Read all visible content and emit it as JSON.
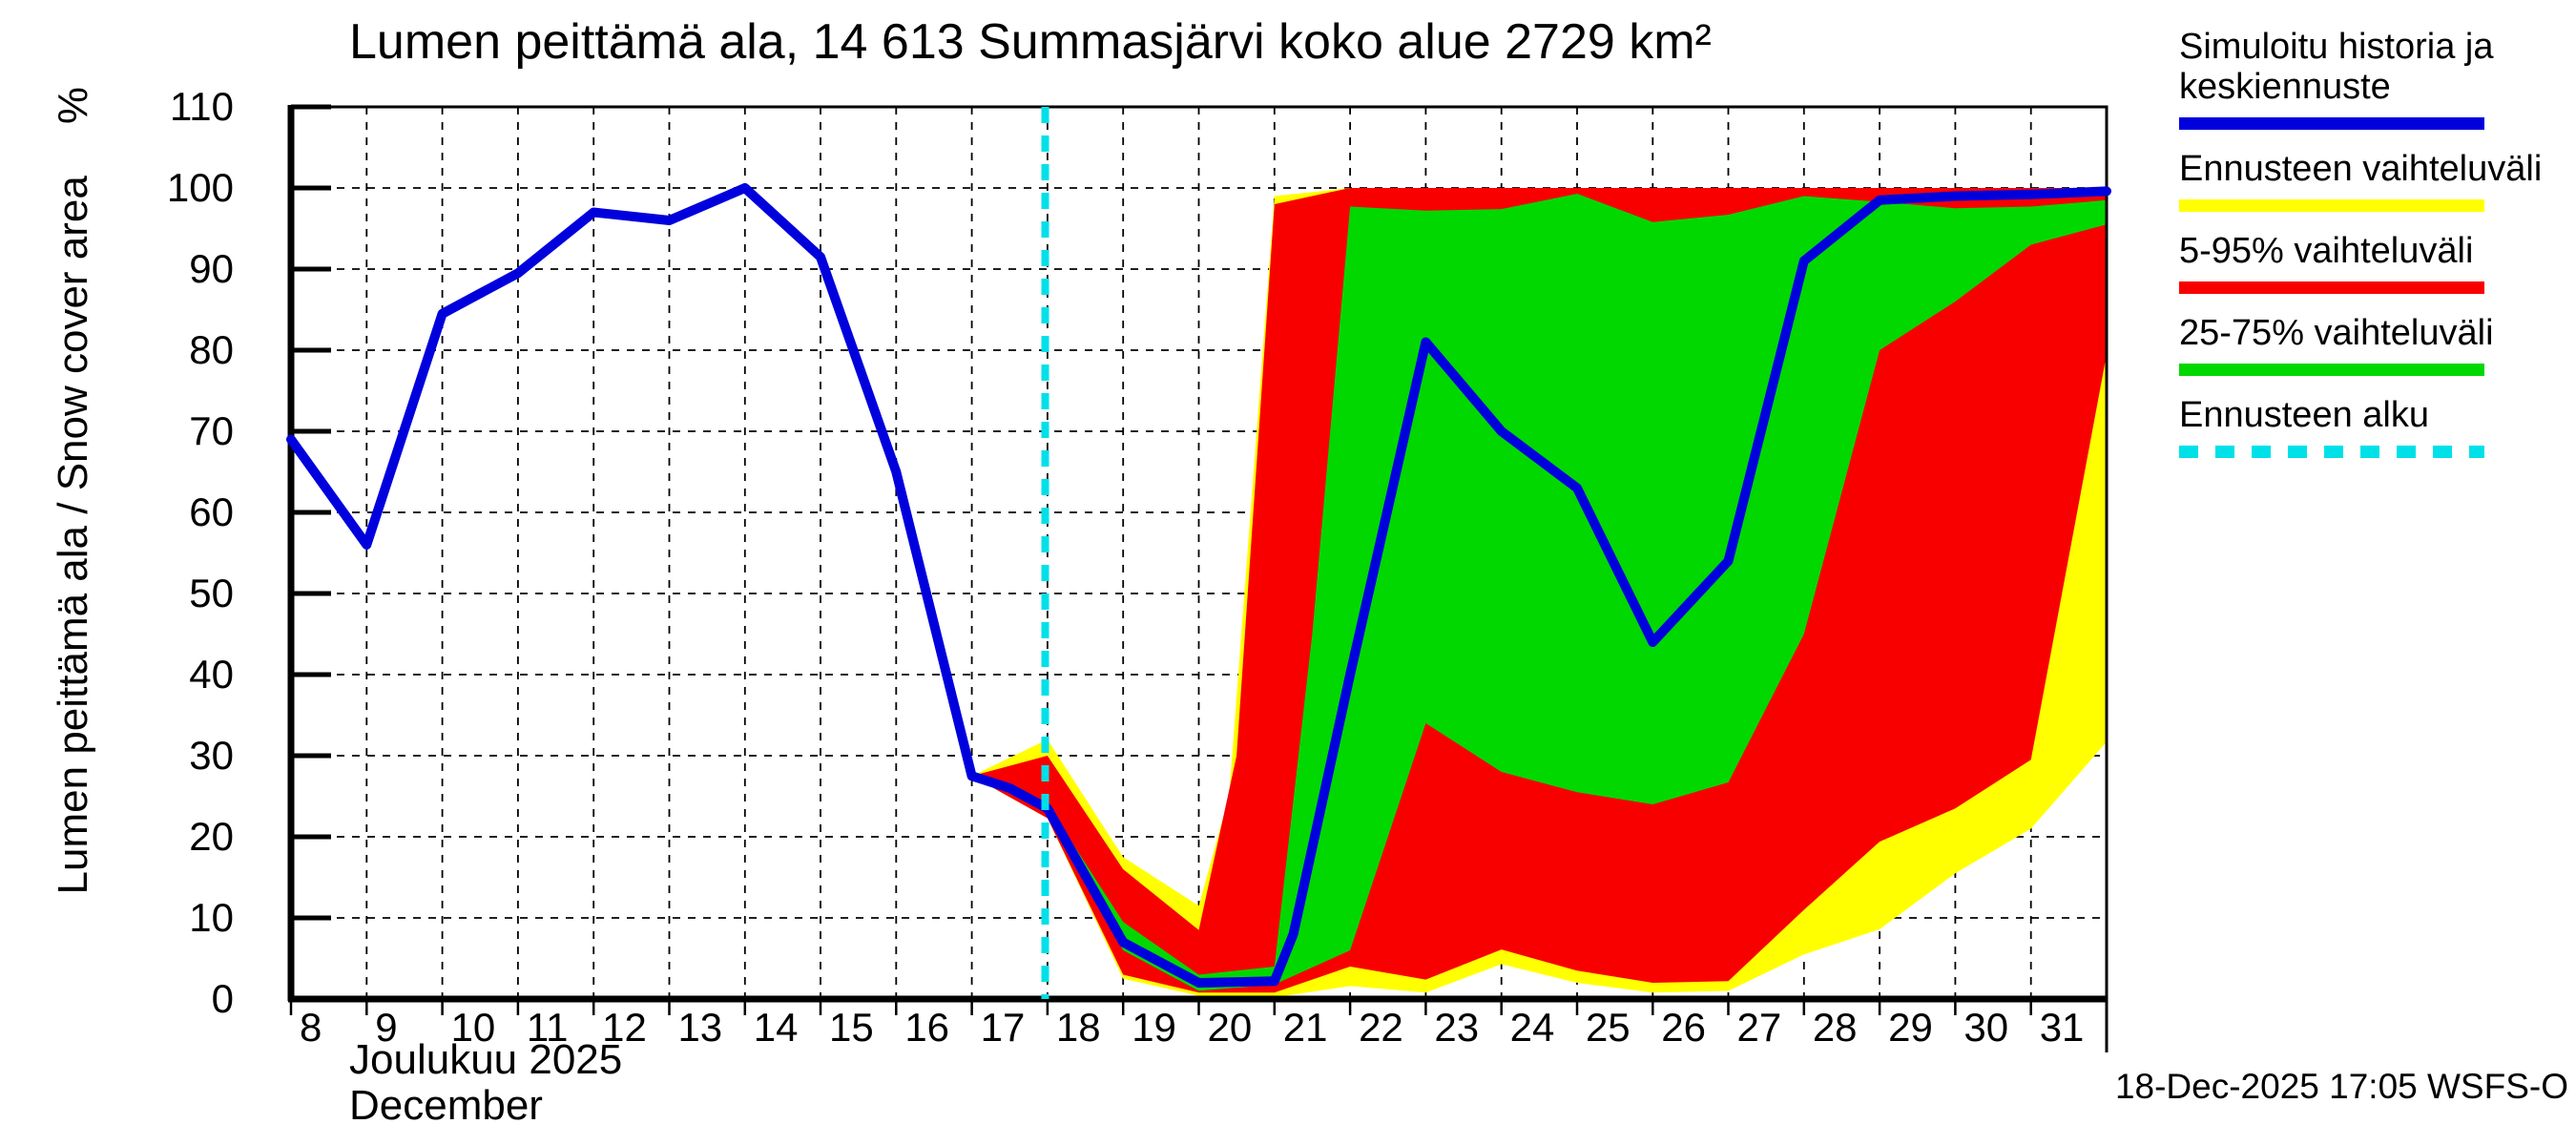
{
  "title": "Lumen peittämä ala, 14 613 Summasjärvi koko alue 2729 km²",
  "y_axis": {
    "label": "Lumen peittämä ala / Snow cover area",
    "unit": "%",
    "ticks": [
      0,
      10,
      20,
      30,
      40,
      50,
      60,
      70,
      80,
      90,
      100,
      110
    ]
  },
  "x_axis": {
    "label_fi": "Joulukuu 2025",
    "label_en": "December",
    "ticks": [
      8,
      9,
      10,
      11,
      12,
      13,
      14,
      15,
      16,
      17,
      18,
      19,
      20,
      21,
      22,
      23,
      24,
      25,
      26,
      27,
      28,
      29,
      30,
      31
    ]
  },
  "footer": {
    "datestamp": "18-Dec-2025 17:05 WSFS-O"
  },
  "colors": {
    "blue": "#0000dd",
    "yellow": "#ffff00",
    "red": "#f80000",
    "green": "#00d800",
    "cyan": "#00e0e8",
    "grid": "#000000",
    "frame": "#000000"
  },
  "legend": [
    {
      "label": "Simuloitu historia ja keskiennuste",
      "color_key": "blue",
      "dashed": false
    },
    {
      "label": "Ennusteen vaihteluväli",
      "color_key": "yellow",
      "dashed": false
    },
    {
      "label": "5-95% vaihteluväli",
      "color_key": "red",
      "dashed": false
    },
    {
      "label": "25-75% vaihteluväli",
      "color_key": "green",
      "dashed": false
    },
    {
      "label": "Ennusteen alku",
      "color_key": "cyan",
      "dashed": true
    }
  ],
  "chart_data": {
    "type": "line",
    "title": "Lumen peittämä ala, 14 613 Summasjärvi koko alue 2729 km²",
    "xlabel": "Joulukuu 2025 / December",
    "ylabel": "Lumen peittämä ala / Snow cover area (%)",
    "x_unit": "day of December 2025 (x>31 = early January)",
    "xlim": [
      8,
      32
    ],
    "ylim": [
      0,
      110
    ],
    "grid": true,
    "legend_position": "right-outside",
    "forecast_start_day": 17.97,
    "median": {
      "name": "Simuloitu historia ja keskiennuste",
      "color_key": "blue",
      "points": [
        [
          8,
          69
        ],
        [
          9,
          56
        ],
        [
          10,
          84.5
        ],
        [
          11,
          89.5
        ],
        [
          12,
          97
        ],
        [
          13,
          96
        ],
        [
          14,
          100
        ],
        [
          15,
          91.5
        ],
        [
          16,
          65
        ],
        [
          17,
          27.5
        ],
        [
          17.5,
          26
        ],
        [
          18,
          23.5
        ],
        [
          19,
          7
        ],
        [
          20,
          2
        ],
        [
          21,
          2.2
        ],
        [
          21.25,
          8
        ],
        [
          22,
          40
        ],
        [
          23,
          81
        ],
        [
          24,
          70
        ],
        [
          25,
          63
        ],
        [
          26,
          44
        ],
        [
          27,
          54
        ],
        [
          28,
          91
        ],
        [
          29,
          98.5
        ],
        [
          30,
          99
        ],
        [
          31,
          99.2
        ],
        [
          32,
          99.6
        ]
      ]
    },
    "bands": [
      {
        "name": "Ennusteen vaihteluväli",
        "color_key": "yellow",
        "lo": [
          [
            17,
            27.5
          ],
          [
            18,
            22.3
          ],
          [
            19,
            2.5
          ],
          [
            20,
            0.4
          ],
          [
            21,
            0.2
          ],
          [
            22,
            1.6
          ],
          [
            23,
            0.8
          ],
          [
            24,
            4.3
          ],
          [
            25,
            2
          ],
          [
            26,
            0.8
          ],
          [
            27,
            1
          ],
          [
            28,
            5.5
          ],
          [
            29,
            8.6
          ],
          [
            30,
            15.5
          ],
          [
            31,
            21
          ],
          [
            32,
            31.7
          ]
        ],
        "hi": [
          [
            17,
            27.5
          ],
          [
            18,
            32
          ],
          [
            19,
            17.5
          ],
          [
            20,
            11.5
          ],
          [
            20.4,
            25
          ],
          [
            21,
            99
          ],
          [
            22,
            100
          ],
          [
            23,
            100
          ],
          [
            24,
            100
          ],
          [
            25,
            100
          ],
          [
            26,
            100
          ],
          [
            27,
            100
          ],
          [
            28,
            100
          ],
          [
            29,
            100
          ],
          [
            30,
            100
          ],
          [
            31,
            100
          ],
          [
            32,
            100
          ]
        ]
      },
      {
        "name": "5-95% vaihteluväli",
        "color_key": "red",
        "lo": [
          [
            17,
            27.5
          ],
          [
            18,
            22.3
          ],
          [
            19,
            3
          ],
          [
            20,
            0.8
          ],
          [
            21,
            0.8
          ],
          [
            22,
            4
          ],
          [
            23,
            2.4
          ],
          [
            24,
            6.1
          ],
          [
            25,
            3.5
          ],
          [
            26,
            2
          ],
          [
            27,
            2.2
          ],
          [
            28,
            11
          ],
          [
            29,
            19.4
          ],
          [
            30,
            23.5
          ],
          [
            31,
            29.5
          ],
          [
            32,
            79.5
          ]
        ],
        "hi": [
          [
            17,
            27.5
          ],
          [
            18,
            30
          ],
          [
            19,
            16
          ],
          [
            20,
            8.5
          ],
          [
            20.5,
            30
          ],
          [
            21,
            98
          ],
          [
            22,
            100
          ],
          [
            23,
            100
          ],
          [
            24,
            100
          ],
          [
            25,
            100
          ],
          [
            26,
            100
          ],
          [
            27,
            100
          ],
          [
            28,
            100
          ],
          [
            29,
            100
          ],
          [
            30,
            100
          ],
          [
            31,
            100
          ],
          [
            32,
            100
          ]
        ]
      },
      {
        "name": "25-75% vaihteluväli",
        "color_key": "green",
        "lo": [
          [
            17,
            27.5
          ],
          [
            18,
            23.2
          ],
          [
            19,
            6
          ],
          [
            20,
            1
          ],
          [
            21,
            1.8
          ],
          [
            22,
            6
          ],
          [
            23,
            34
          ],
          [
            24,
            28
          ],
          [
            25,
            25.5
          ],
          [
            26,
            24
          ],
          [
            27,
            26.7
          ],
          [
            28,
            45
          ],
          [
            29,
            80
          ],
          [
            30,
            86
          ],
          [
            31,
            93
          ],
          [
            32,
            95.5
          ]
        ],
        "hi": [
          [
            17,
            27.5
          ],
          [
            18,
            24
          ],
          [
            19,
            9.5
          ],
          [
            20,
            3
          ],
          [
            21,
            4
          ],
          [
            21.5,
            45
          ],
          [
            22,
            97.7
          ],
          [
            23,
            97.2
          ],
          [
            24,
            97.4
          ],
          [
            25,
            99.3
          ],
          [
            26,
            95.8
          ],
          [
            27,
            96.7
          ],
          [
            28,
            99
          ],
          [
            29,
            98.3
          ],
          [
            30,
            97.5
          ],
          [
            31,
            97.7
          ],
          [
            32,
            98.5
          ]
        ]
      }
    ]
  }
}
